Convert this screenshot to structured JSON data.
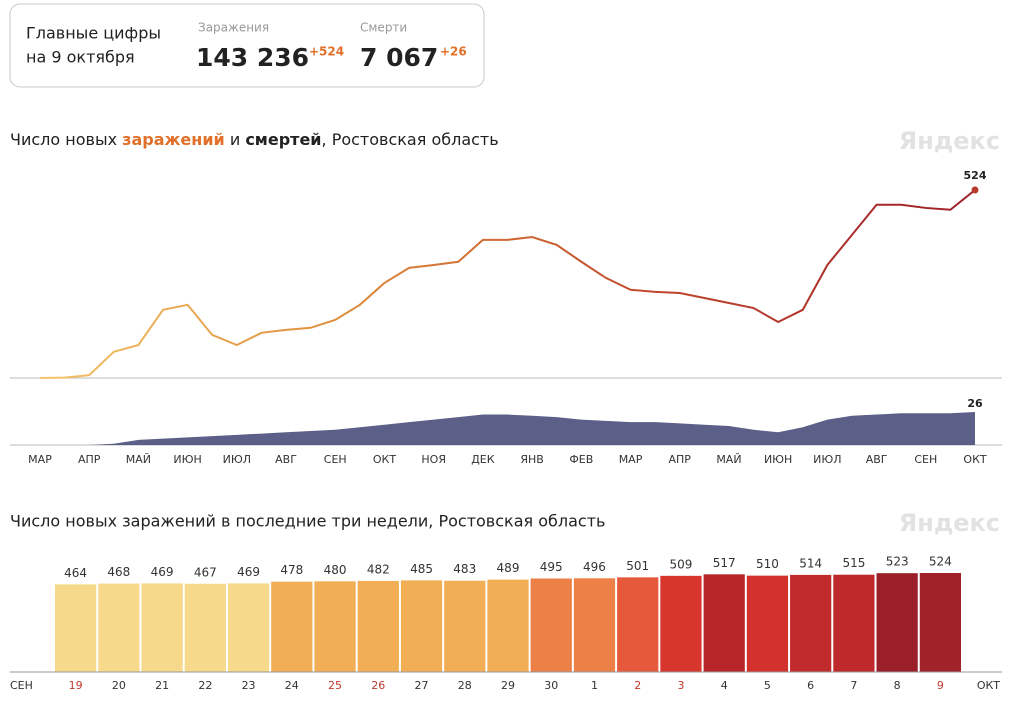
{
  "header": {
    "title": "Главные цифры",
    "date": "на 9 октября",
    "infections_label": "Заражения",
    "infections": "143 236",
    "infections_delta": "+524",
    "deaths_label": "Смерти",
    "deaths": "7 067",
    "deaths_delta": "+26"
  },
  "chart_data": [
    {
      "type": "line",
      "title_parts": [
        {
          "text": "Число новых "
        },
        {
          "text": "заражений",
          "color": "#e0702a",
          "bold": true
        },
        {
          "text": " и "
        },
        {
          "text": "смертей",
          "bold": true
        },
        {
          "text": ", Ростовская область"
        }
      ],
      "watermark": "Яндекс",
      "categories": [
        "МАР",
        null,
        "АПР",
        null,
        "МАЙ",
        null,
        "ИЮН",
        null,
        "ИЮЛ",
        null,
        "АВГ",
        null,
        "СЕН",
        null,
        "ОКТ",
        null,
        "НОЯ",
        null,
        "ДЕК",
        null,
        "ЯНВ",
        null,
        "ФЕВ",
        null,
        "МАР",
        null,
        "АПР",
        null,
        "МАЙ",
        null,
        "ИЮН",
        null,
        "ИЮЛ",
        null,
        "АВГ",
        null,
        "СЕН",
        null,
        "ОКТ"
      ],
      "series": [
        {
          "name": "заражений",
          "color": "#b83a2a",
          "gradient": [
            "#f5c46a",
            "#dd8a3a",
            "#c0452c",
            "#9e1f28"
          ],
          "values": [
            0,
            1,
            8,
            73,
            92,
            190,
            204,
            120,
            92,
            126,
            134,
            140,
            162,
            204,
            265,
            307,
            315,
            324,
            385,
            385,
            393,
            371,
            324,
            279,
            246,
            240,
            237,
            223,
            209,
            195,
            156,
            190,
            315,
            399,
            483,
            483,
            474,
            469,
            524
          ]
        },
        {
          "name": "смертей",
          "color": "#4a4e7a",
          "values": [
            0,
            0,
            0,
            1,
            4,
            5,
            6,
            7,
            8,
            9,
            10,
            11,
            12,
            14,
            16,
            18,
            20,
            22,
            24,
            24,
            23,
            22,
            20,
            19,
            18,
            18,
            17,
            16,
            15,
            12,
            10,
            14,
            20,
            23,
            24,
            25,
            25,
            25,
            26
          ]
        }
      ]
    },
    {
      "type": "bar",
      "title": "Число новых заражений в последние три недели, Ростовская область",
      "watermark": "Яндекс",
      "month_start": "СЕН",
      "month_end": "ОКТ",
      "categories": [
        "19",
        "20",
        "21",
        "22",
        "23",
        "24",
        "25",
        "26",
        "27",
        "28",
        "29",
        "30",
        "1",
        "2",
        "3",
        "4",
        "5",
        "6",
        "7",
        "8",
        "9"
      ],
      "values": [
        464,
        468,
        469,
        467,
        469,
        478,
        480,
        482,
        485,
        483,
        489,
        495,
        496,
        501,
        509,
        517,
        510,
        514,
        515,
        523,
        524
      ],
      "colors": [
        "#f6d98a",
        "#f6d98a",
        "#f6d98a",
        "#f6d98a",
        "#f6d98a",
        "#f2ae55",
        "#f2ae55",
        "#f2ae55",
        "#f2ae55",
        "#f2ae55",
        "#f2ae55",
        "#ec8046",
        "#ec8046",
        "#e6593a",
        "#d8362c",
        "#b8262a",
        "#d3322c",
        "#c22b2b",
        "#be2a2b",
        "#9b1f28",
        "#a12229"
      ],
      "label_colors": [
        "#c0392b",
        "#333333",
        "#333333",
        "#333333",
        "#333333",
        "#333333",
        "#c0392b",
        "#c0392b",
        "#333333",
        "#333333",
        "#333333",
        "#333333",
        "#333333",
        "#c0392b",
        "#c0392b",
        "#333333",
        "#333333",
        "#333333",
        "#333333",
        "#333333",
        "#c0392b"
      ]
    }
  ]
}
